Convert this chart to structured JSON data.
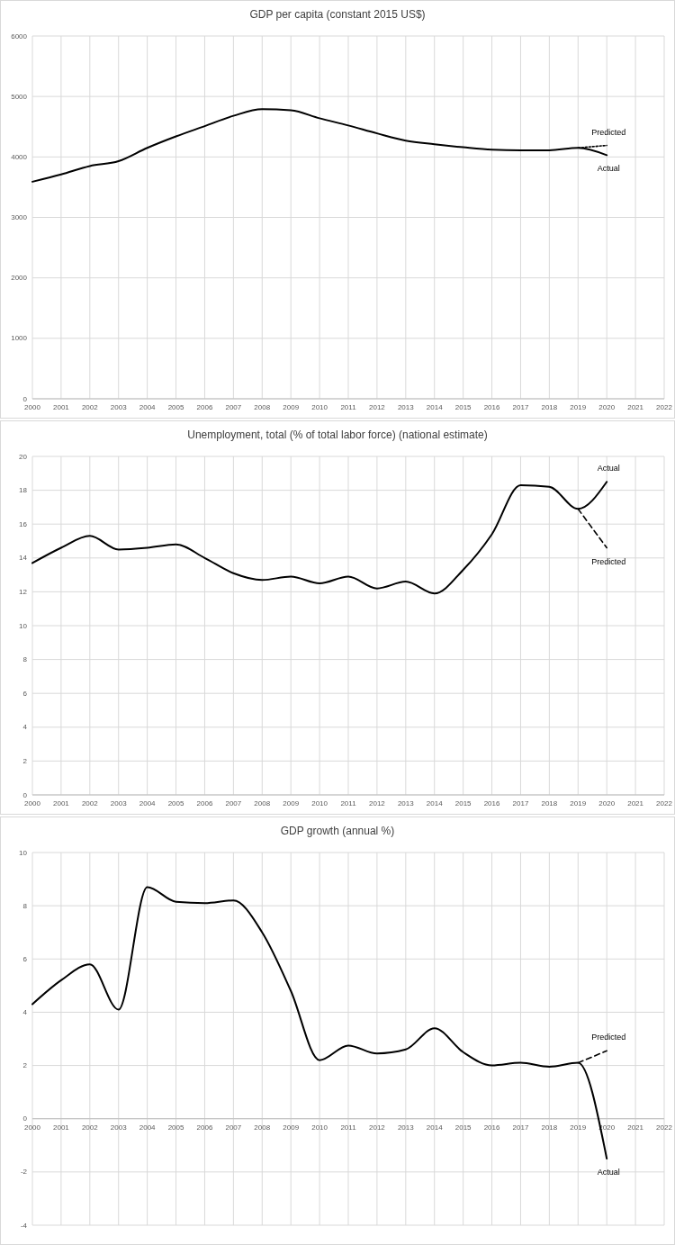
{
  "chart_data": [
    {
      "type": "line",
      "title": "GDP per capita (constant 2015 US$)",
      "xlim": [
        2000,
        2022
      ],
      "xticks": [
        2000,
        2001,
        2002,
        2003,
        2004,
        2005,
        2006,
        2007,
        2008,
        2009,
        2010,
        2011,
        2012,
        2013,
        2014,
        2015,
        2016,
        2017,
        2018,
        2019,
        2020,
        2021,
        2022
      ],
      "ylim": [
        0,
        6000
      ],
      "yticks": [
        0,
        1000,
        2000,
        3000,
        4000,
        5000,
        6000
      ],
      "grid": true,
      "series": [
        {
          "name": "Actual",
          "color": "#000000",
          "line_style": "solid",
          "x": [
            2000,
            2001,
            2002,
            2003,
            2004,
            2005,
            2006,
            2007,
            2008,
            2009,
            2010,
            2011,
            2012,
            2013,
            2014,
            2015,
            2016,
            2017,
            2018,
            2019,
            2020
          ],
          "values": [
            3590,
            3710,
            3850,
            3930,
            4150,
            4340,
            4510,
            4680,
            4790,
            4770,
            4640,
            4520,
            4390,
            4270,
            4210,
            4160,
            4120,
            4110,
            4110,
            4150,
            4030
          ]
        },
        {
          "name": "Predicted",
          "color": "#000000",
          "line_style": "dotted",
          "x": [
            2019,
            2020
          ],
          "values": [
            4150,
            4190
          ]
        }
      ]
    },
    {
      "type": "line",
      "title": "Unemployment, total (% of total labor force) (national estimate)",
      "xlim": [
        2000,
        2022
      ],
      "xticks": [
        2000,
        2001,
        2002,
        2003,
        2004,
        2005,
        2006,
        2007,
        2008,
        2009,
        2010,
        2011,
        2012,
        2013,
        2014,
        2015,
        2016,
        2017,
        2018,
        2019,
        2020,
        2021,
        2022
      ],
      "ylim": [
        0,
        20
      ],
      "yticks": [
        0,
        2,
        4,
        6,
        8,
        10,
        12,
        14,
        16,
        18,
        20
      ],
      "grid": true,
      "series": [
        {
          "name": "Actual",
          "color": "#000000",
          "line_style": "solid",
          "x": [
            2000,
            2001,
            2002,
            2003,
            2004,
            2005,
            2006,
            2007,
            2008,
            2009,
            2010,
            2011,
            2012,
            2013,
            2014,
            2015,
            2016,
            2017,
            2018,
            2019,
            2020
          ],
          "values": [
            13.7,
            14.6,
            15.3,
            14.5,
            14.6,
            14.8,
            14.0,
            13.1,
            12.7,
            12.9,
            12.5,
            12.9,
            12.2,
            12.6,
            11.9,
            13.3,
            15.4,
            18.3,
            18.2,
            16.9,
            18.5
          ]
        },
        {
          "name": "Predicted",
          "color": "#000000",
          "line_style": "dashed",
          "x": [
            2019,
            2020
          ],
          "values": [
            16.9,
            14.6
          ]
        }
      ]
    },
    {
      "type": "line",
      "title": "GDP growth (annual %)",
      "xlim": [
        2000,
        2022
      ],
      "xticks": [
        2000,
        2001,
        2002,
        2003,
        2004,
        2005,
        2006,
        2007,
        2008,
        2009,
        2010,
        2011,
        2012,
        2013,
        2014,
        2015,
        2016,
        2017,
        2018,
        2019,
        2020,
        2021,
        2022
      ],
      "ylim": [
        -4,
        10
      ],
      "yticks": [
        -4,
        -2,
        0,
        2,
        4,
        6,
        8,
        10
      ],
      "grid": true,
      "series": [
        {
          "name": "Actual",
          "color": "#000000",
          "line_style": "solid",
          "x": [
            2000,
            2001,
            2002,
            2003,
            2004,
            2005,
            2006,
            2007,
            2008,
            2009,
            2010,
            2011,
            2012,
            2013,
            2014,
            2015,
            2016,
            2017,
            2018,
            2019,
            2020
          ],
          "values": [
            4.3,
            5.2,
            5.8,
            4.1,
            8.7,
            8.15,
            8.1,
            8.2,
            7.0,
            4.8,
            2.2,
            2.75,
            2.45,
            2.6,
            3.4,
            2.5,
            2.0,
            2.1,
            1.95,
            2.1,
            -1.5
          ]
        },
        {
          "name": "Predicted",
          "color": "#000000",
          "line_style": "dashed",
          "x": [
            2019,
            2020
          ],
          "values": [
            2.1,
            2.55
          ]
        }
      ]
    }
  ]
}
